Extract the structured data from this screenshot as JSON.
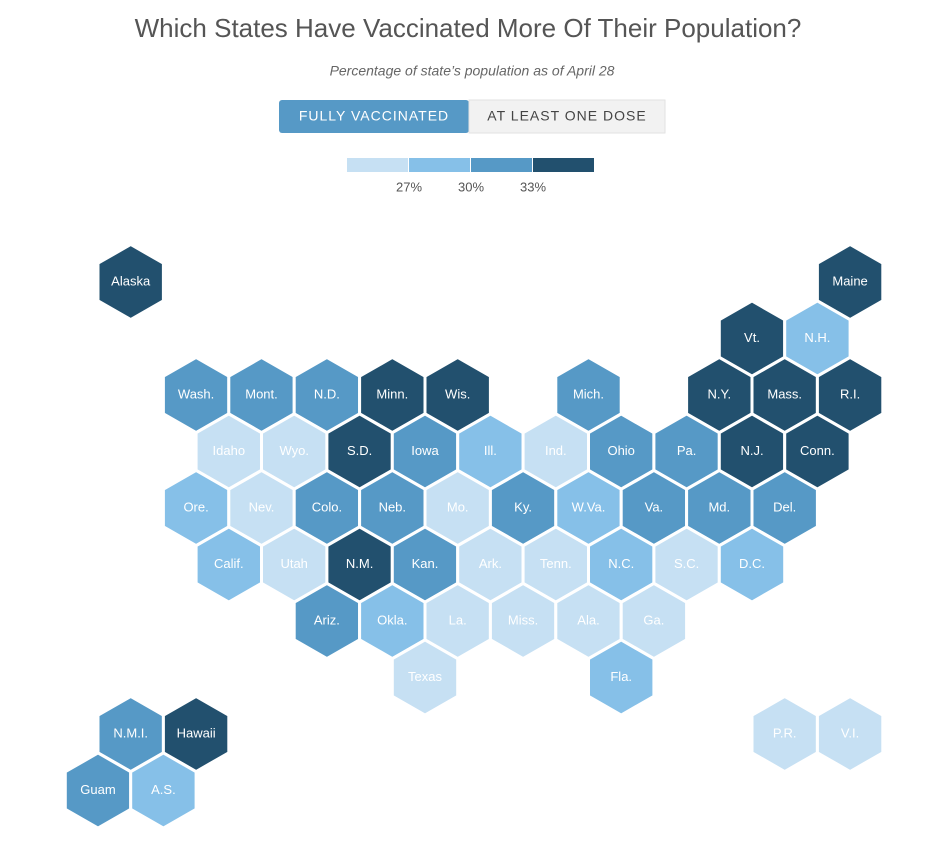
{
  "header": {
    "title": "Which States Have Vaccinated More Of Their Population?",
    "subtitle": "Percentage of state’s population as of April 28"
  },
  "toggle": {
    "options": [
      "FULLY VACCINATED",
      "AT LEAST ONE DOSE"
    ],
    "active": 0
  },
  "legend": {
    "colors": [
      "#c6e0f3",
      "#86c0e8",
      "#5699c6",
      "#22506e"
    ],
    "ticks": [
      "27%",
      "30%",
      "33%"
    ]
  },
  "tiles": [
    {
      "label": "Alaska",
      "bin": 3
    },
    {
      "label": "Maine",
      "bin": 3
    },
    {
      "label": "Vt.",
      "bin": 3
    },
    {
      "label": "N.H.",
      "bin": 1
    },
    {
      "label": "Wash.",
      "bin": 2
    },
    {
      "label": "Mont.",
      "bin": 2
    },
    {
      "label": "N.D.",
      "bin": 2
    },
    {
      "label": "Minn.",
      "bin": 3
    },
    {
      "label": "Wis.",
      "bin": 3
    },
    {
      "label": "Mich.",
      "bin": 2
    },
    {
      "label": "N.Y.",
      "bin": 3
    },
    {
      "label": "Mass.",
      "bin": 3
    },
    {
      "label": "R.I.",
      "bin": 3
    },
    {
      "label": "Idaho",
      "bin": 0
    },
    {
      "label": "Wyo.",
      "bin": 0
    },
    {
      "label": "S.D.",
      "bin": 3
    },
    {
      "label": "Iowa",
      "bin": 2
    },
    {
      "label": "Ill.",
      "bin": 1
    },
    {
      "label": "Ind.",
      "bin": 0
    },
    {
      "label": "Ohio",
      "bin": 2
    },
    {
      "label": "Pa.",
      "bin": 2
    },
    {
      "label": "N.J.",
      "bin": 3
    },
    {
      "label": "Conn.",
      "bin": 3
    },
    {
      "label": "Ore.",
      "bin": 1
    },
    {
      "label": "Nev.",
      "bin": 0
    },
    {
      "label": "Colo.",
      "bin": 2
    },
    {
      "label": "Neb.",
      "bin": 2
    },
    {
      "label": "Mo.",
      "bin": 0
    },
    {
      "label": "Ky.",
      "bin": 2
    },
    {
      "label": "W.Va.",
      "bin": 1
    },
    {
      "label": "Va.",
      "bin": 2
    },
    {
      "label": "Md.",
      "bin": 2
    },
    {
      "label": "Del.",
      "bin": 2
    },
    {
      "label": "Calif.",
      "bin": 1
    },
    {
      "label": "Utah",
      "bin": 0
    },
    {
      "label": "N.M.",
      "bin": 3
    },
    {
      "label": "Kan.",
      "bin": 2
    },
    {
      "label": "Ark.",
      "bin": 0
    },
    {
      "label": "Tenn.",
      "bin": 0
    },
    {
      "label": "N.C.",
      "bin": 1
    },
    {
      "label": "S.C.",
      "bin": 0
    },
    {
      "label": "D.C.",
      "bin": 1
    },
    {
      "label": "Ariz.",
      "bin": 2
    },
    {
      "label": "Okla.",
      "bin": 1
    },
    {
      "label": "La.",
      "bin": 0
    },
    {
      "label": "Miss.",
      "bin": 0
    },
    {
      "label": "Ala.",
      "bin": 0
    },
    {
      "label": "Ga.",
      "bin": 0
    },
    {
      "label": "Texas",
      "bin": 0
    },
    {
      "label": "Fla.",
      "bin": 1
    },
    {
      "label": "N.M.I.",
      "bin": 2
    },
    {
      "label": "Hawaii",
      "bin": 3
    },
    {
      "label": "P.R.",
      "bin": 0
    },
    {
      "label": "V.I.",
      "bin": 0
    },
    {
      "label": "Guam",
      "bin": 2
    },
    {
      "label": "A.S.",
      "bin": 1
    }
  ]
}
